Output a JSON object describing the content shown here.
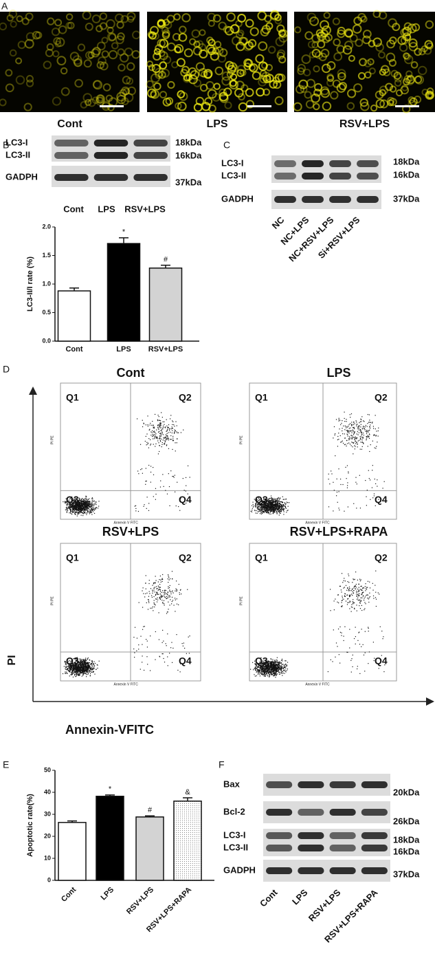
{
  "panel_labels": [
    "A",
    "B",
    "C",
    "D",
    "E",
    "F"
  ],
  "panel_a": {
    "captions": [
      "Cont",
      "LPS",
      "RSV+LPS"
    ]
  },
  "panel_b": {
    "blot_labels": [
      "LC3-I",
      "LC3-II",
      "GADPH"
    ],
    "sizes": [
      "18kDa",
      "16kDa",
      "37kDa"
    ],
    "lanes": [
      "Cont",
      "LPS",
      "RSV+LPS"
    ],
    "chart": {
      "type": "bar",
      "ylabel": "LC3-II/I rate (%)",
      "categories": [
        "Cont",
        "LPS",
        "RSV+LPS"
      ],
      "values": [
        0.88,
        1.71,
        1.28
      ],
      "errors": [
        0.05,
        0.1,
        0.05
      ],
      "annotations": [
        null,
        "*",
        "#"
      ],
      "colors": [
        "#ffffff",
        "#000000",
        "#d3d3d3"
      ],
      "ylim": [
        0,
        2.0
      ],
      "yticks": [
        {
          "value": 0,
          "label": "0.0"
        },
        {
          "value": 0.5,
          "label": "0.5"
        },
        {
          "value": 1,
          "label": "1.0"
        },
        {
          "value": 1.5,
          "label": "1.5"
        },
        {
          "value": 2,
          "label": "2.0"
        }
      ]
    }
  },
  "panel_c": {
    "blot_labels": [
      "LC3-I",
      "LC3-II",
      "GADPH"
    ],
    "sizes": [
      "18kDa",
      "16kDa",
      "37kDa"
    ],
    "lanes": [
      "NC",
      "NC+LPS",
      "NC+RSV+LPS",
      "Si+RSV+LPS"
    ]
  },
  "panel_d": {
    "y_label": "PI",
    "x_label": "Annexin-VFITC",
    "inner_x_label": "Annexin V FITC",
    "inner_y_label": "PI PE",
    "quadrants": [
      "Q1",
      "Q2",
      "Q3",
      "Q4"
    ],
    "plots": [
      "Cont",
      "LPS",
      "RSV+LPS",
      "RSV+LPS+RAPA"
    ]
  },
  "panel_e": {
    "chart": {
      "type": "bar",
      "ylabel": "Apoptotic rate(%)",
      "categories": [
        "Cont",
        "LPS",
        "RSV+LPS",
        "RSV+LPS+RAPA"
      ],
      "values": [
        26.3,
        38.2,
        28.8,
        36.0
      ],
      "errors": [
        0.7,
        0.6,
        0.5,
        1.5
      ],
      "annotations": [
        null,
        "*",
        "#",
        "&"
      ],
      "colors": [
        "#ffffff",
        "#000000",
        "#d3d3d3",
        "#eeeeee"
      ],
      "ylim": [
        0,
        50
      ],
      "yticks": [
        0,
        10,
        20,
        30,
        40,
        50
      ]
    }
  },
  "panel_f": {
    "blot_labels": [
      "Bax",
      "Bcl-2",
      "LC3-I",
      "LC3-II",
      "GADPH"
    ],
    "sizes": [
      "20kDa",
      "26kDa",
      "18kDa",
      "16kDa",
      "37kDa"
    ],
    "lanes": [
      "Cont",
      "LPS",
      "RSV+LPS",
      "RSV+LPS+RAPA"
    ]
  }
}
